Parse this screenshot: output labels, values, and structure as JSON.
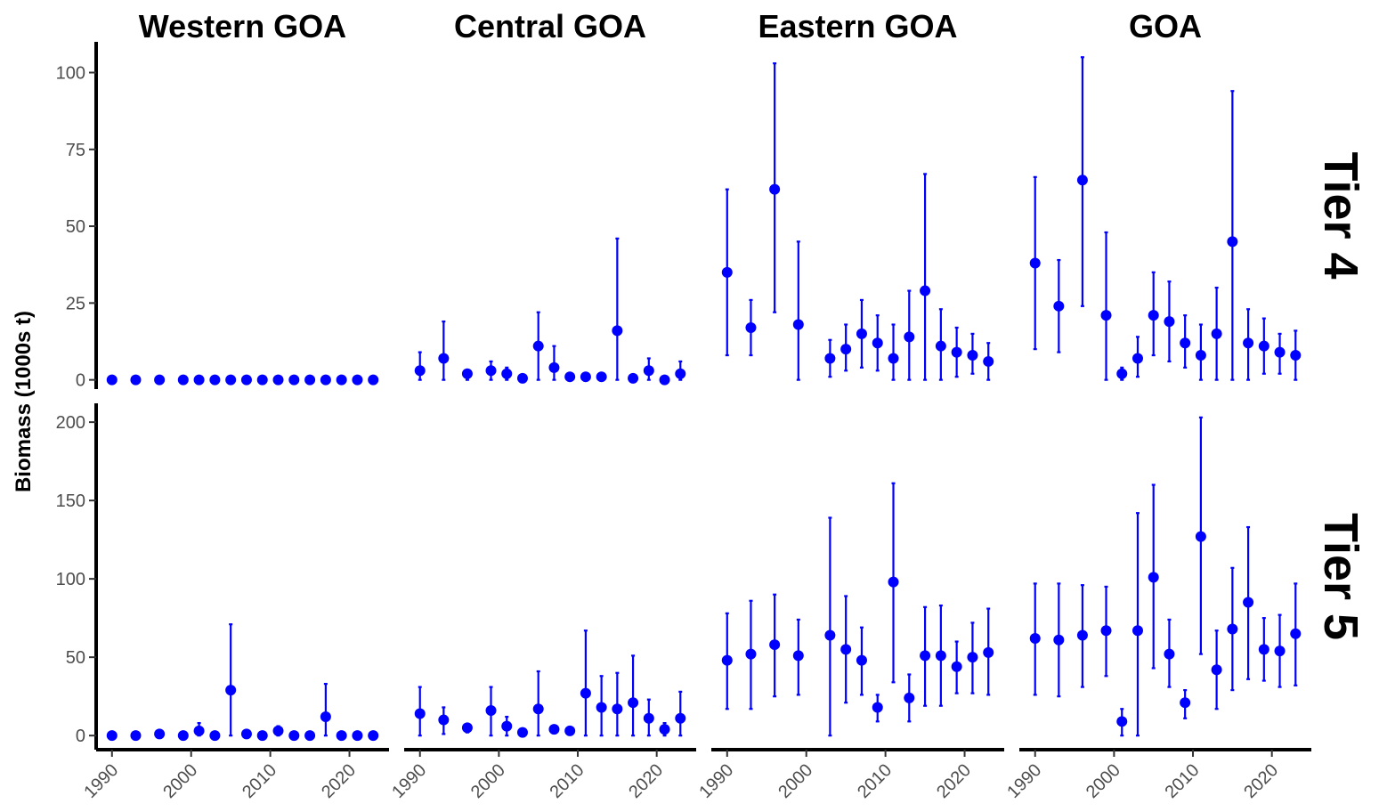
{
  "chart_data": {
    "type": "scatter",
    "ylabel": "Biomass (1000s t)",
    "color": "#0000ff",
    "columns": [
      "Western GOA",
      "Central GOA",
      "Eastern GOA",
      "GOA"
    ],
    "rows": [
      {
        "label": "Tier 4",
        "ylim": [
          -3,
          110
        ],
        "yticks": [
          0,
          25,
          50,
          75,
          100
        ],
        "ytick_labels": [
          "0",
          "25",
          "50",
          "75",
          "100"
        ]
      },
      {
        "label": "Tier 5",
        "ylim": [
          -9,
          212
        ],
        "yticks": [
          0,
          50,
          100,
          150,
          200
        ],
        "ytick_labels": [
          "0",
          "50",
          "100",
          "150",
          "200"
        ]
      }
    ],
    "xlim": [
      1988,
      2025
    ],
    "xticks": [
      1990,
      2000,
      2010,
      2020
    ],
    "xtick_labels": [
      "1990",
      "2000",
      "2010",
      "2020"
    ],
    "panels": [
      {
        "row": 0,
        "col": 0,
        "points": [
          {
            "x": 1990,
            "y": 0,
            "lo": 0,
            "hi": 0
          },
          {
            "x": 1993,
            "y": 0,
            "lo": 0,
            "hi": 0
          },
          {
            "x": 1996,
            "y": 0,
            "lo": 0,
            "hi": 0
          },
          {
            "x": 1999,
            "y": 0,
            "lo": 0,
            "hi": 0
          },
          {
            "x": 2001,
            "y": 0,
            "lo": 0,
            "hi": 0
          },
          {
            "x": 2003,
            "y": 0,
            "lo": 0,
            "hi": 0
          },
          {
            "x": 2005,
            "y": 0,
            "lo": 0,
            "hi": 0
          },
          {
            "x": 2007,
            "y": 0,
            "lo": 0,
            "hi": 0
          },
          {
            "x": 2009,
            "y": 0,
            "lo": 0,
            "hi": 0
          },
          {
            "x": 2011,
            "y": 0,
            "lo": 0,
            "hi": 0
          },
          {
            "x": 2013,
            "y": 0,
            "lo": 0,
            "hi": 0
          },
          {
            "x": 2015,
            "y": 0,
            "lo": 0,
            "hi": 0
          },
          {
            "x": 2017,
            "y": 0,
            "lo": 0,
            "hi": 0
          },
          {
            "x": 2019,
            "y": 0,
            "lo": 0,
            "hi": 0
          },
          {
            "x": 2021,
            "y": 0,
            "lo": 0,
            "hi": 0
          },
          {
            "x": 2023,
            "y": 0,
            "lo": 0,
            "hi": 0
          }
        ]
      },
      {
        "row": 0,
        "col": 1,
        "points": [
          {
            "x": 1990,
            "y": 3,
            "lo": 0,
            "hi": 9
          },
          {
            "x": 1993,
            "y": 7,
            "lo": 0,
            "hi": 19
          },
          {
            "x": 1996,
            "y": 2,
            "lo": 0,
            "hi": 3
          },
          {
            "x": 1999,
            "y": 3,
            "lo": 0,
            "hi": 6
          },
          {
            "x": 2001,
            "y": 2,
            "lo": 0,
            "hi": 4
          },
          {
            "x": 2003,
            "y": 0.5,
            "lo": 0,
            "hi": 0.5
          },
          {
            "x": 2005,
            "y": 11,
            "lo": 0,
            "hi": 22
          },
          {
            "x": 2007,
            "y": 4,
            "lo": 0,
            "hi": 11
          },
          {
            "x": 2009,
            "y": 1,
            "lo": 1,
            "hi": 1
          },
          {
            "x": 2011,
            "y": 1,
            "lo": 1,
            "hi": 1
          },
          {
            "x": 2013,
            "y": 1,
            "lo": 1,
            "hi": 1
          },
          {
            "x": 2015,
            "y": 16,
            "lo": 0,
            "hi": 46
          },
          {
            "x": 2017,
            "y": 0.5,
            "lo": 0.5,
            "hi": 0.5
          },
          {
            "x": 2019,
            "y": 3,
            "lo": 0,
            "hi": 7
          },
          {
            "x": 2021,
            "y": 0,
            "lo": 0,
            "hi": 0
          },
          {
            "x": 2023,
            "y": 2,
            "lo": 0,
            "hi": 6
          }
        ]
      },
      {
        "row": 0,
        "col": 2,
        "points": [
          {
            "x": 1990,
            "y": 35,
            "lo": 8,
            "hi": 62
          },
          {
            "x": 1993,
            "y": 17,
            "lo": 8,
            "hi": 26
          },
          {
            "x": 1996,
            "y": 62,
            "lo": 22,
            "hi": 103
          },
          {
            "x": 1999,
            "y": 18,
            "lo": 0,
            "hi": 45
          },
          {
            "x": 2003,
            "y": 7,
            "lo": 1,
            "hi": 13
          },
          {
            "x": 2005,
            "y": 10,
            "lo": 3,
            "hi": 18
          },
          {
            "x": 2007,
            "y": 15,
            "lo": 4,
            "hi": 26
          },
          {
            "x": 2009,
            "y": 12,
            "lo": 3,
            "hi": 21
          },
          {
            "x": 2011,
            "y": 7,
            "lo": 0,
            "hi": 18
          },
          {
            "x": 2013,
            "y": 14,
            "lo": 0,
            "hi": 29
          },
          {
            "x": 2015,
            "y": 29,
            "lo": 0,
            "hi": 67
          },
          {
            "x": 2017,
            "y": 11,
            "lo": 0,
            "hi": 23
          },
          {
            "x": 2019,
            "y": 9,
            "lo": 1,
            "hi": 17
          },
          {
            "x": 2021,
            "y": 8,
            "lo": 2,
            "hi": 15
          },
          {
            "x": 2023,
            "y": 6,
            "lo": 0,
            "hi": 12
          }
        ]
      },
      {
        "row": 0,
        "col": 3,
        "points": [
          {
            "x": 1990,
            "y": 38,
            "lo": 10,
            "hi": 66
          },
          {
            "x": 1993,
            "y": 24,
            "lo": 9,
            "hi": 39
          },
          {
            "x": 1996,
            "y": 65,
            "lo": 24,
            "hi": 105
          },
          {
            "x": 1999,
            "y": 21,
            "lo": 0,
            "hi": 48
          },
          {
            "x": 2001,
            "y": 2,
            "lo": 0,
            "hi": 4
          },
          {
            "x": 2003,
            "y": 7,
            "lo": 1,
            "hi": 14
          },
          {
            "x": 2005,
            "y": 21,
            "lo": 8,
            "hi": 35
          },
          {
            "x": 2007,
            "y": 19,
            "lo": 6,
            "hi": 32
          },
          {
            "x": 2009,
            "y": 12,
            "lo": 4,
            "hi": 21
          },
          {
            "x": 2011,
            "y": 8,
            "lo": 0,
            "hi": 18
          },
          {
            "x": 2013,
            "y": 15,
            "lo": 0,
            "hi": 30
          },
          {
            "x": 2015,
            "y": 45,
            "lo": 0,
            "hi": 94
          },
          {
            "x": 2017,
            "y": 12,
            "lo": 0,
            "hi": 23
          },
          {
            "x": 2019,
            "y": 11,
            "lo": 2,
            "hi": 20
          },
          {
            "x": 2021,
            "y": 9,
            "lo": 2,
            "hi": 15
          },
          {
            "x": 2023,
            "y": 8,
            "lo": 0,
            "hi": 16
          }
        ]
      },
      {
        "row": 1,
        "col": 0,
        "points": [
          {
            "x": 1990,
            "y": 0,
            "lo": 0,
            "hi": 0
          },
          {
            "x": 1993,
            "y": 0,
            "lo": 0,
            "hi": 0
          },
          {
            "x": 1996,
            "y": 1,
            "lo": 1,
            "hi": 1
          },
          {
            "x": 1999,
            "y": 0,
            "lo": 0,
            "hi": 0
          },
          {
            "x": 2001,
            "y": 3,
            "lo": 0,
            "hi": 8
          },
          {
            "x": 2003,
            "y": 0,
            "lo": 0,
            "hi": 0
          },
          {
            "x": 2005,
            "y": 29,
            "lo": 0,
            "hi": 71
          },
          {
            "x": 2007,
            "y": 1,
            "lo": 1,
            "hi": 1
          },
          {
            "x": 2009,
            "y": 0,
            "lo": 0,
            "hi": 0
          },
          {
            "x": 2011,
            "y": 3,
            "lo": 0,
            "hi": 6
          },
          {
            "x": 2013,
            "y": 0,
            "lo": 0,
            "hi": 0
          },
          {
            "x": 2015,
            "y": 0,
            "lo": 0,
            "hi": 0
          },
          {
            "x": 2017,
            "y": 12,
            "lo": 0,
            "hi": 33
          },
          {
            "x": 2019,
            "y": 0,
            "lo": 0,
            "hi": 0
          },
          {
            "x": 2021,
            "y": 0,
            "lo": 0,
            "hi": 0
          },
          {
            "x": 2023,
            "y": 0,
            "lo": 0,
            "hi": 0
          }
        ]
      },
      {
        "row": 1,
        "col": 1,
        "points": [
          {
            "x": 1990,
            "y": 14,
            "lo": 0,
            "hi": 31
          },
          {
            "x": 1993,
            "y": 10,
            "lo": 1,
            "hi": 18
          },
          {
            "x": 1996,
            "y": 5,
            "lo": 2,
            "hi": 7
          },
          {
            "x": 1999,
            "y": 16,
            "lo": 0,
            "hi": 31
          },
          {
            "x": 2001,
            "y": 6,
            "lo": 0,
            "hi": 12
          },
          {
            "x": 2003,
            "y": 2,
            "lo": 2,
            "hi": 2
          },
          {
            "x": 2005,
            "y": 17,
            "lo": 0,
            "hi": 41
          },
          {
            "x": 2007,
            "y": 4,
            "lo": 4,
            "hi": 4
          },
          {
            "x": 2009,
            "y": 3,
            "lo": 3,
            "hi": 3
          },
          {
            "x": 2011,
            "y": 27,
            "lo": 0,
            "hi": 67
          },
          {
            "x": 2013,
            "y": 18,
            "lo": 0,
            "hi": 38
          },
          {
            "x": 2015,
            "y": 17,
            "lo": 0,
            "hi": 40
          },
          {
            "x": 2017,
            "y": 21,
            "lo": 0,
            "hi": 51
          },
          {
            "x": 2019,
            "y": 11,
            "lo": 0,
            "hi": 23
          },
          {
            "x": 2021,
            "y": 4,
            "lo": 0,
            "hi": 8
          },
          {
            "x": 2023,
            "y": 11,
            "lo": 0,
            "hi": 28
          }
        ]
      },
      {
        "row": 1,
        "col": 2,
        "points": [
          {
            "x": 1990,
            "y": 48,
            "lo": 17,
            "hi": 78
          },
          {
            "x": 1993,
            "y": 52,
            "lo": 17,
            "hi": 86
          },
          {
            "x": 1996,
            "y": 58,
            "lo": 25,
            "hi": 90
          },
          {
            "x": 1999,
            "y": 51,
            "lo": 26,
            "hi": 74
          },
          {
            "x": 2003,
            "y": 64,
            "lo": 0,
            "hi": 139
          },
          {
            "x": 2005,
            "y": 55,
            "lo": 21,
            "hi": 89
          },
          {
            "x": 2007,
            "y": 48,
            "lo": 26,
            "hi": 69
          },
          {
            "x": 2009,
            "y": 18,
            "lo": 9,
            "hi": 26
          },
          {
            "x": 2011,
            "y": 98,
            "lo": 34,
            "hi": 161
          },
          {
            "x": 2013,
            "y": 24,
            "lo": 9,
            "hi": 39
          },
          {
            "x": 2015,
            "y": 51,
            "lo": 19,
            "hi": 82
          },
          {
            "x": 2017,
            "y": 51,
            "lo": 19,
            "hi": 83
          },
          {
            "x": 2019,
            "y": 44,
            "lo": 27,
            "hi": 60
          },
          {
            "x": 2021,
            "y": 50,
            "lo": 27,
            "hi": 72
          },
          {
            "x": 2023,
            "y": 53,
            "lo": 26,
            "hi": 81
          }
        ]
      },
      {
        "row": 1,
        "col": 3,
        "points": [
          {
            "x": 1990,
            "y": 62,
            "lo": 26,
            "hi": 97
          },
          {
            "x": 1993,
            "y": 61,
            "lo": 25,
            "hi": 97
          },
          {
            "x": 1996,
            "y": 64,
            "lo": 31,
            "hi": 96
          },
          {
            "x": 1999,
            "y": 67,
            "lo": 38,
            "hi": 95
          },
          {
            "x": 2001,
            "y": 9,
            "lo": 0,
            "hi": 17
          },
          {
            "x": 2003,
            "y": 67,
            "lo": 0,
            "hi": 142
          },
          {
            "x": 2005,
            "y": 101,
            "lo": 43,
            "hi": 160
          },
          {
            "x": 2007,
            "y": 52,
            "lo": 31,
            "hi": 74
          },
          {
            "x": 2009,
            "y": 21,
            "lo": 11,
            "hi": 29
          },
          {
            "x": 2011,
            "y": 127,
            "lo": 52,
            "hi": 203
          },
          {
            "x": 2013,
            "y": 42,
            "lo": 17,
            "hi": 67
          },
          {
            "x": 2015,
            "y": 68,
            "lo": 29,
            "hi": 107
          },
          {
            "x": 2017,
            "y": 85,
            "lo": 36,
            "hi": 133
          },
          {
            "x": 2019,
            "y": 55,
            "lo": 35,
            "hi": 75
          },
          {
            "x": 2021,
            "y": 54,
            "lo": 31,
            "hi": 77
          },
          {
            "x": 2023,
            "y": 65,
            "lo": 32,
            "hi": 97
          }
        ]
      }
    ]
  }
}
